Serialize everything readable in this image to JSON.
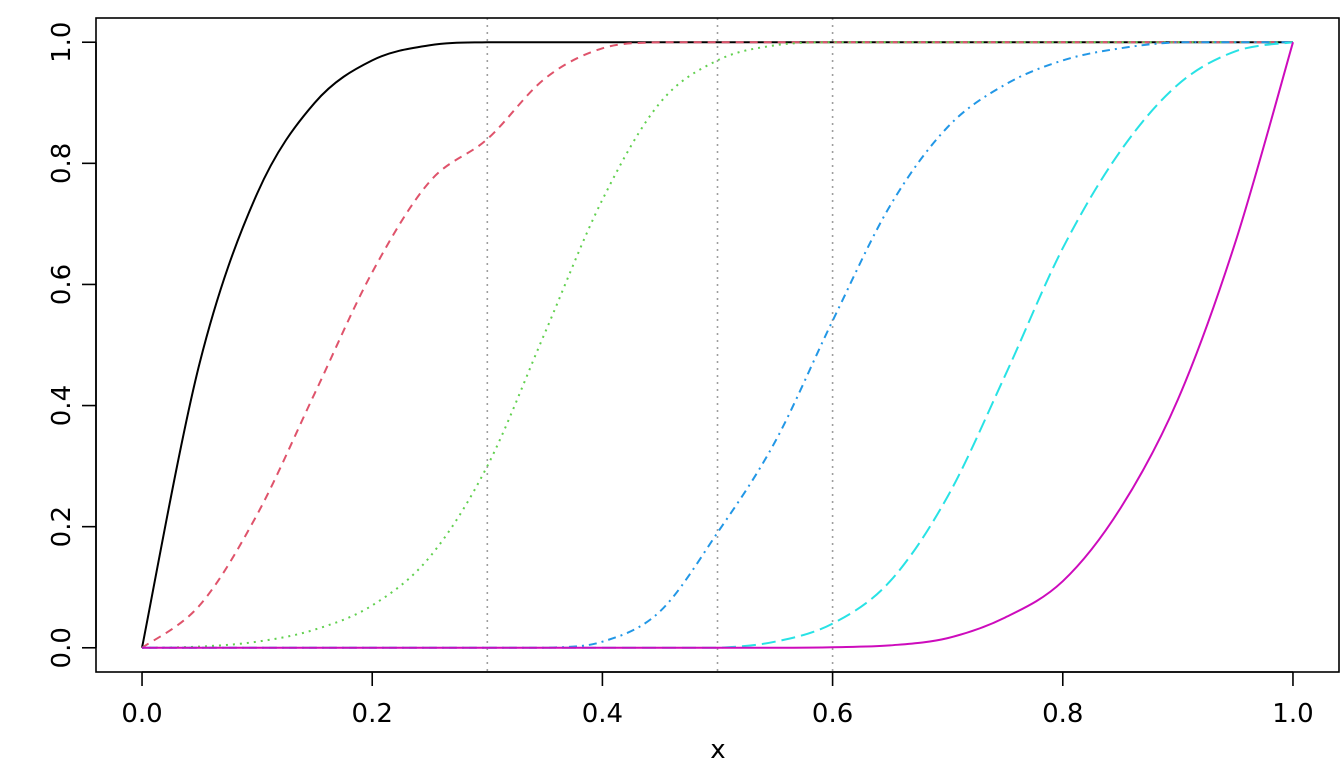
{
  "chart_data": {
    "type": "line",
    "title": "",
    "xlabel": "x",
    "ylabel": "",
    "xlim": [
      -0.04,
      1.04
    ],
    "ylim": [
      -0.04,
      1.04
    ],
    "xticks": [
      0,
      0.2,
      0.4,
      0.6,
      0.8,
      1
    ],
    "xtick_labels": [
      "0.0",
      "0.2",
      "0.4",
      "0.6",
      "0.8",
      "1.0"
    ],
    "yticks": [
      0,
      0.2,
      0.4,
      0.6,
      0.8,
      1
    ],
    "ytick_labels": [
      "0.0",
      "0.2",
      "0.4",
      "0.6",
      "0.8",
      "1.0"
    ],
    "grid": false,
    "legend": "none",
    "reference_lines": {
      "orientation": "vertical",
      "x": [
        0.3,
        0.5,
        0.6
      ],
      "color": "#9e9e9e",
      "style": "dotted"
    },
    "x": [
      0,
      0.05,
      0.1,
      0.15,
      0.2,
      0.25,
      0.3,
      0.35,
      0.4,
      0.45,
      0.5,
      0.55,
      0.6,
      0.65,
      0.7,
      0.75,
      0.8,
      0.85,
      0.9,
      0.95,
      1
    ],
    "series": [
      {
        "color": "#000000",
        "style": "solid",
        "values": [
          0,
          0.47,
          0.75,
          0.9,
          0.97,
          0.995,
          1,
          1,
          1,
          1,
          1,
          1,
          1,
          1,
          1,
          1,
          1,
          1,
          1,
          1,
          1
        ]
      },
      {
        "color": "#df536b",
        "style": "dashed",
        "values": [
          0,
          0.07,
          0.22,
          0.42,
          0.62,
          0.77,
          0.84,
          0.94,
          0.99,
          1,
          1,
          1,
          1,
          1,
          1,
          1,
          1,
          1,
          1,
          1,
          1
        ]
      },
      {
        "color": "#61d04f",
        "style": "dotted",
        "values": [
          0,
          0.002,
          0.01,
          0.03,
          0.07,
          0.15,
          0.3,
          0.52,
          0.74,
          0.9,
          0.97,
          0.995,
          1,
          1,
          1,
          1,
          1,
          1,
          1,
          1,
          1
        ]
      },
      {
        "color": "#2297e6",
        "style": "dotdash",
        "values": [
          0,
          0,
          0,
          0,
          0,
          0,
          0,
          0,
          0.01,
          0.06,
          0.19,
          0.34,
          0.54,
          0.73,
          0.86,
          0.93,
          0.97,
          0.99,
          1,
          1,
          1
        ]
      },
      {
        "color": "#28e2e5",
        "style": "longdash",
        "values": [
          0,
          0,
          0,
          0,
          0,
          0,
          0,
          0,
          0,
          0,
          0,
          0.01,
          0.04,
          0.11,
          0.25,
          0.45,
          0.66,
          0.82,
          0.93,
          0.985,
          1
        ]
      },
      {
        "color": "#cd0bbc",
        "style": "solid",
        "values": [
          0,
          0,
          0,
          0,
          0,
          0,
          0,
          0,
          0,
          0,
          0,
          0,
          0.001,
          0.004,
          0.016,
          0.05,
          0.11,
          0.23,
          0.41,
          0.67,
          1
        ]
      }
    ]
  }
}
